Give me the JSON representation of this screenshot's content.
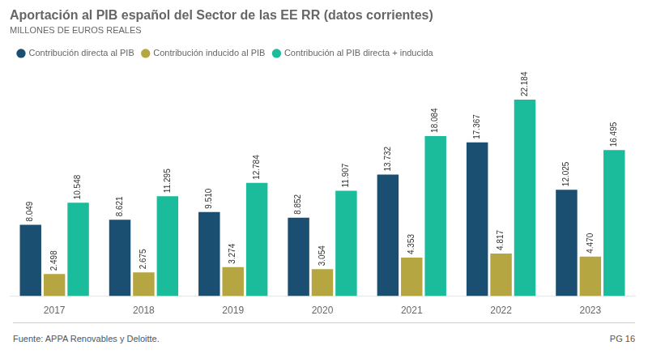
{
  "chart_data": {
    "type": "bar",
    "title": "Aportación al PIB español del Sector de las EE RR (datos corrientes)",
    "subtitle": "MILLONES DE EUROS REALES",
    "categories": [
      "2017",
      "2018",
      "2019",
      "2020",
      "2021",
      "2022",
      "2023"
    ],
    "series": [
      {
        "name": "Contribución directa al PIB",
        "color": "#1b4f72",
        "values": [
          8049,
          8621,
          9510,
          8852,
          13732,
          17367,
          12025
        ],
        "value_labels": [
          "8.049",
          "8.621",
          "9.510",
          "8.852",
          "13.732",
          "17.367",
          "12.025"
        ]
      },
      {
        "name": "Contribución inducido al PIB",
        "color": "#b5a642",
        "values": [
          2498,
          2675,
          3274,
          3054,
          4353,
          4817,
          4470
        ],
        "value_labels": [
          "2.498",
          "2.675",
          "3.274",
          "3.054",
          "4.353",
          "4.817",
          "4.470"
        ]
      },
      {
        "name": "Contribución al PIB directa + inducida",
        "color": "#1abc9c",
        "values": [
          10548,
          11295,
          12784,
          11907,
          18084,
          22184,
          16495
        ],
        "value_labels": [
          "10.548",
          "11.295",
          "12.784",
          "11.907",
          "18.084",
          "22.184",
          "16.495"
        ]
      }
    ],
    "ylim": [
      0,
      26000
    ],
    "grid": false,
    "legend": "upper left",
    "data_labels": true,
    "tick_labels": "x",
    "annotations": [
      "Fuente: APPA Renovables y Deloitte.",
      "PG 16"
    ]
  }
}
